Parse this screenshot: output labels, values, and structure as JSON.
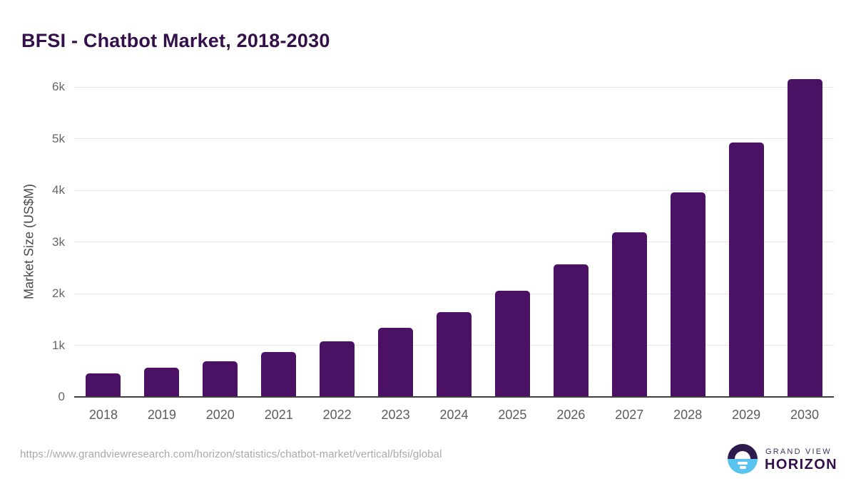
{
  "chart_data": {
    "type": "bar",
    "title": "BFSI - Chatbot Market, 2018-2030",
    "xlabel": "",
    "ylabel": "Market Size (US$M)",
    "categories": [
      "2018",
      "2019",
      "2020",
      "2021",
      "2022",
      "2023",
      "2024",
      "2025",
      "2026",
      "2027",
      "2028",
      "2029",
      "2030"
    ],
    "values": [
      450,
      565,
      690,
      865,
      1075,
      1340,
      1645,
      2050,
      2565,
      3190,
      3955,
      4925,
      6150
    ],
    "yticks": [
      0,
      1000,
      2000,
      3000,
      4000,
      5000,
      6000
    ],
    "ytick_labels": [
      "0",
      "1k",
      "2k",
      "3k",
      "4k",
      "5k",
      "6k"
    ],
    "ylim": [
      0,
      6400
    ],
    "grid": true,
    "legend": "none",
    "bar_color": "#4a1164",
    "title_color": "#331049",
    "axis_line_color": "#3f3f3f",
    "gridline_color": "#e6e6e6"
  },
  "footer": {
    "source_url": "https://www.grandviewresearch.com/horizon/statistics/chatbot-market/vertical/bfsi/global",
    "logo": {
      "line1": "GRAND VIEW",
      "line2": "HORIZON",
      "circle_top_color": "#2d1b4e",
      "circle_bottom_color": "#5ac4f1"
    }
  }
}
